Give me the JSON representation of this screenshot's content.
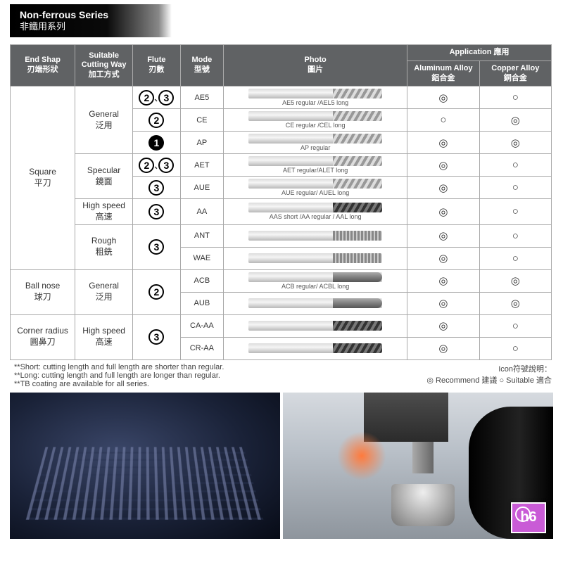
{
  "title": {
    "en": "Non-ferrous Series",
    "zh": "非鐵用系列"
  },
  "headers": {
    "endShape": "End Shap\n刃端形狀",
    "cuttingWay": "Suitable\nCutting Way\n加工方式",
    "flute": "Flute\n刃數",
    "mode": "Mode\n型號",
    "photo": "Photo\n圖片",
    "application": "Application 應用",
    "aluminum": "Aluminum Alloy\n鋁合金",
    "copper": "Copper Alloy\n銅合金"
  },
  "shapes": {
    "square": {
      "en": "Square",
      "zh": "平刀"
    },
    "ballnose": {
      "en": "Ball nose",
      "zh": "球刀"
    },
    "corner": {
      "en": "Corner radius",
      "zh": "圓鼻刀"
    }
  },
  "cuts": {
    "general": {
      "en": "General",
      "zh": "泛用"
    },
    "specular": {
      "en": "Specular",
      "zh": "鏡面"
    },
    "highspeed": {
      "en": "High speed",
      "zh": "高速"
    },
    "rough": {
      "en": "Rough",
      "zh": "粗銑"
    }
  },
  "rows": [
    {
      "flute": "2,3",
      "fluteStyle": "outline",
      "mode": "AE5",
      "photoLabel": "AE5 regular /AEL5 long",
      "tool": "std",
      "al": "◎",
      "cu": "○"
    },
    {
      "flute": "2",
      "fluteStyle": "outline",
      "mode": "CE",
      "photoLabel": "CE regular /CEL long",
      "tool": "std",
      "al": "○",
      "cu": "◎"
    },
    {
      "flute": "1",
      "fluteStyle": "solid",
      "mode": "AP",
      "photoLabel": "AP regular",
      "tool": "std",
      "al": "◎",
      "cu": "◎"
    },
    {
      "flute": "2,3",
      "fluteStyle": "outline",
      "mode": "AET",
      "photoLabel": "AET regular/ALET long",
      "tool": "std",
      "al": "◎",
      "cu": "○"
    },
    {
      "flute": "3",
      "fluteStyle": "outline",
      "mode": "AUE",
      "photoLabel": "AUE regular/ AUEL long",
      "tool": "std",
      "al": "◎",
      "cu": "○"
    },
    {
      "flute": "3",
      "fluteStyle": "outline",
      "mode": "AA",
      "photoLabel": "AAS short /AA regular / AAL long",
      "tool": "dark",
      "al": "◎",
      "cu": "○"
    },
    {
      "flute": "3",
      "fluteStyle": "outline",
      "mode": "ANT",
      "photoLabel": "",
      "tool": "rough",
      "al": "◎",
      "cu": "○"
    },
    {
      "mode": "WAE",
      "photoLabel": "",
      "tool": "rough",
      "al": "◎",
      "cu": "○"
    },
    {
      "flute": "2",
      "fluteStyle": "outline",
      "mode": "ACB",
      "photoLabel": "ACB regular/ ACBL long",
      "tool": "ball",
      "al": "◎",
      "cu": "◎"
    },
    {
      "mode": "AUB",
      "photoLabel": "",
      "tool": "ball",
      "al": "◎",
      "cu": "◎"
    },
    {
      "flute": "3",
      "fluteStyle": "outline",
      "mode": "CA-AA",
      "photoLabel": "",
      "tool": "dark",
      "al": "◎",
      "cu": "○"
    },
    {
      "mode": "CR-AA",
      "photoLabel": "",
      "tool": "dark",
      "al": "◎",
      "cu": "○"
    }
  ],
  "footnotes": {
    "left": [
      "Short: cutting length and full length are shorter than regular.",
      "Long: cutting length and full length are longer than regular.",
      "TB coating are available for all series."
    ],
    "rightTitle": "Icon符號說明：",
    "rightLine": "◎ Recommend 建議  ○ Suitable 適合"
  },
  "badge": "h6"
}
